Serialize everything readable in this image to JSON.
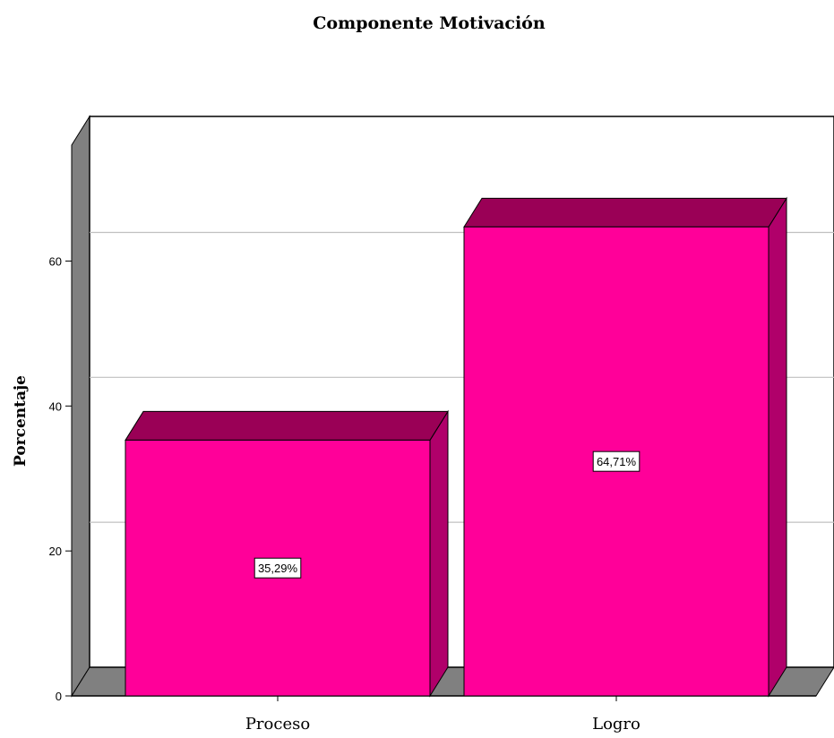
{
  "chart_data": {
    "type": "bar",
    "title": "Componente Motivación",
    "xlabel": "",
    "ylabel": "Porcentaje",
    "categories": [
      "Proceso",
      "Logro"
    ],
    "values": [
      35.29,
      64.71
    ],
    "data_labels": [
      "35,29%",
      "64,71%"
    ],
    "yticks": [
      0,
      20,
      40,
      60
    ],
    "ylim": [
      0,
      76
    ],
    "grid": true,
    "style": "3d",
    "colors": {
      "bar_front": "#ff0099",
      "bar_top": "#9a0056",
      "bar_side": "#b0006a",
      "wall": "#808080",
      "grid": "#c0c0c0"
    }
  }
}
